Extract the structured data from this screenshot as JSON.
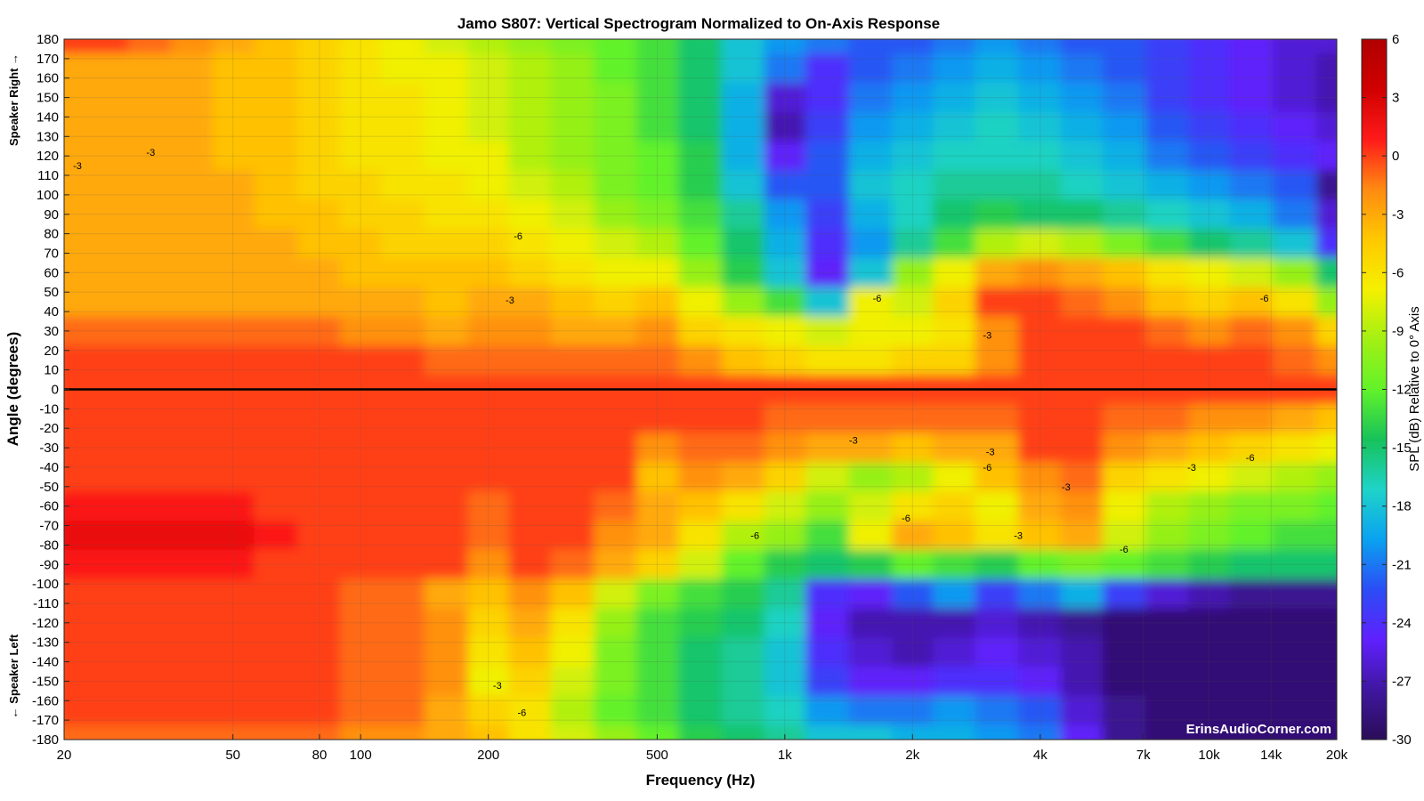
{
  "chart_data": {
    "type": "heatmap",
    "title": "Jamo S807: Vertical Spectrogram Normalized to On-Axis Response",
    "xlabel": "Frequency (Hz)",
    "ylabel": "Angle (degrees)",
    "y_upper_label": "Speaker Right →",
    "y_lower_label": "← Speaker Left",
    "x_scale": "log",
    "xlim": [
      20,
      20000
    ],
    "ylim": [
      -180,
      180
    ],
    "x_ticks": [
      {
        "value": 20,
        "label": "20"
      },
      {
        "value": 50,
        "label": "50"
      },
      {
        "value": 80,
        "label": "80"
      },
      {
        "value": 100,
        "label": "100"
      },
      {
        "value": 200,
        "label": "200"
      },
      {
        "value": 500,
        "label": "500"
      },
      {
        "value": 1000,
        "label": "1k"
      },
      {
        "value": 2000,
        "label": "2k"
      },
      {
        "value": 4000,
        "label": "4k"
      },
      {
        "value": 7000,
        "label": "7k"
      },
      {
        "value": 10000,
        "label": "10k"
      },
      {
        "value": 14000,
        "label": "14k"
      },
      {
        "value": 20000,
        "label": "20k"
      }
    ],
    "y_ticks": [
      180,
      170,
      160,
      150,
      140,
      130,
      120,
      110,
      100,
      90,
      80,
      70,
      60,
      50,
      40,
      30,
      20,
      10,
      0,
      -10,
      -20,
      -30,
      -40,
      -50,
      -60,
      -70,
      -80,
      -90,
      -100,
      -110,
      -120,
      -130,
      -140,
      -150,
      -160,
      -170,
      -180
    ],
    "colorbar": {
      "label": "SPL (dB) Relative to 0° Axis",
      "range": [
        -30,
        6
      ],
      "ticks": [
        6,
        3,
        0,
        -3,
        -6,
        -9,
        -12,
        -15,
        -18,
        -21,
        -24,
        -27,
        -30
      ],
      "colors": [
        "#2a0d58",
        "#3f17a0",
        "#6020ff",
        "#2b4df5",
        "#0aa2f0",
        "#1fd3c8",
        "#17c25a",
        "#62f22a",
        "#a3f014",
        "#f5f000",
        "#ffc800",
        "#ff8a12",
        "#ff1a1a",
        "#d00000",
        "#b00000"
      ]
    },
    "x_resolution_hz_log": [
      20,
      25,
      32,
      40,
      50,
      63,
      80,
      100,
      125,
      160,
      200,
      250,
      315,
      400,
      500,
      630,
      800,
      1000,
      1250,
      1600,
      2000,
      2500,
      3150,
      4000,
      5000,
      6300,
      8000,
      10000,
      12500,
      16000,
      20000
    ],
    "y_resolution_deg": [
      180,
      165,
      150,
      135,
      120,
      105,
      90,
      75,
      60,
      45,
      30,
      15,
      0,
      -15,
      -30,
      -45,
      -60,
      -75,
      -90,
      -105,
      -120,
      -135,
      -150,
      -165,
      -180
    ],
    "z": [
      [
        0,
        0,
        -1,
        -2,
        -3,
        -4,
        -5,
        -6,
        -7,
        -8,
        -9,
        -10,
        -11,
        -12,
        -13,
        -15,
        -18,
        -20,
        -21,
        -22,
        -22,
        -21,
        -20,
        -21,
        -22,
        -22,
        -23,
        -24,
        -25,
        -26,
        -26
      ],
      [
        -3,
        -3,
        -3,
        -3,
        -4,
        -4,
        -5,
        -6,
        -7,
        -7,
        -8,
        -9,
        -10,
        -12,
        -13,
        -15,
        -18,
        -21,
        -24,
        -22,
        -21,
        -20,
        -19,
        -20,
        -21,
        -22,
        -23,
        -24,
        -25,
        -26,
        -27
      ],
      [
        -3,
        -3,
        -3,
        -3,
        -4,
        -4,
        -5,
        -6,
        -6,
        -7,
        -8,
        -9,
        -10,
        -11,
        -13,
        -15,
        -19,
        -26,
        -24,
        -21,
        -20,
        -19,
        -18,
        -19,
        -20,
        -21,
        -23,
        -24,
        -25,
        -26,
        -27
      ],
      [
        -3,
        -3,
        -3,
        -3,
        -4,
        -4,
        -5,
        -6,
        -6,
        -7,
        -8,
        -9,
        -10,
        -11,
        -13,
        -15,
        -19,
        -27,
        -23,
        -20,
        -19,
        -18,
        -17,
        -18,
        -19,
        -20,
        -22,
        -23,
        -24,
        -25,
        -26
      ],
      [
        -3,
        -3,
        -3,
        -3,
        -4,
        -4,
        -5,
        -6,
        -6,
        -7,
        -7,
        -9,
        -10,
        -11,
        -12,
        -14,
        -19,
        -25,
        -22,
        -19,
        -18,
        -17,
        -17,
        -17,
        -18,
        -19,
        -21,
        -22,
        -23,
        -24,
        -25
      ],
      [
        -3,
        -3,
        -3,
        -3,
        -3,
        -4,
        -5,
        -5,
        -6,
        -6,
        -7,
        -8,
        -9,
        -11,
        -12,
        -14,
        -18,
        -22,
        -22,
        -18,
        -17,
        -16,
        -16,
        -16,
        -17,
        -18,
        -19,
        -20,
        -21,
        -22,
        -28
      ],
      [
        -3,
        -3,
        -3,
        -3,
        -3,
        -4,
        -4,
        -5,
        -5,
        -6,
        -6,
        -7,
        -8,
        -10,
        -11,
        -13,
        -16,
        -20,
        -23,
        -19,
        -17,
        -15,
        -14,
        -15,
        -15,
        -16,
        -17,
        -18,
        -19,
        -21,
        -26
      ],
      [
        -3,
        -3,
        -3,
        -3,
        -3,
        -3,
        -4,
        -4,
        -5,
        -5,
        -5,
        -6,
        -7,
        -8,
        -9,
        -12,
        -15,
        -19,
        -24,
        -20,
        -16,
        -13,
        -9,
        -8,
        -9,
        -11,
        -13,
        -15,
        -16,
        -18,
        -24
      ],
      [
        -3,
        -3,
        -3,
        -3,
        -3,
        -3,
        -3,
        -4,
        -4,
        -4,
        -4,
        -5,
        -6,
        -7,
        -7,
        -10,
        -14,
        -18,
        -25,
        -18,
        -10,
        -7,
        -3,
        -2,
        -3,
        -4,
        -6,
        -7,
        -8,
        -10,
        -15
      ],
      [
        -3,
        -3,
        -3,
        -3,
        -3,
        -3,
        -3,
        -3,
        -3,
        -4,
        -3,
        -3,
        -4,
        -5,
        -4,
        -7,
        -10,
        -13,
        -18,
        -7,
        -8,
        -5,
        0,
        0,
        -1,
        -2,
        -4,
        -5,
        -4,
        -6,
        -10
      ],
      [
        -1,
        -1,
        -1,
        -1,
        -1,
        -1,
        -1,
        -2,
        -2,
        -3,
        -2,
        -2,
        -3,
        -3,
        -2,
        -5,
        -6,
        -7,
        -8,
        -7,
        -7,
        -6,
        -2,
        0,
        0,
        0,
        -1,
        -2,
        -1,
        -2,
        -5
      ],
      [
        0,
        0,
        0,
        0,
        0,
        0,
        0,
        0,
        0,
        -1,
        -1,
        -1,
        -1,
        -1,
        -1,
        -2,
        -4,
        -5,
        -6,
        -6,
        -5,
        -5,
        -2,
        0,
        0,
        0,
        0,
        0,
        0,
        -1,
        -2
      ],
      [
        0,
        0,
        0,
        0,
        0,
        0,
        0,
        0,
        0,
        0,
        0,
        0,
        0,
        0,
        0,
        0,
        0,
        0,
        0,
        0,
        0,
        0,
        0,
        0,
        0,
        0,
        0,
        0,
        0,
        0,
        0
      ],
      [
        0,
        0,
        0,
        0,
        0,
        0,
        0,
        0,
        0,
        0,
        0,
        0,
        0,
        0,
        0,
        0,
        0,
        -1,
        -1,
        -1,
        -1,
        -1,
        -1,
        0,
        0,
        -1,
        -1,
        -2,
        -2,
        -3,
        -4
      ],
      [
        0,
        0,
        0,
        0,
        0,
        0,
        0,
        0,
        0,
        0,
        0,
        0,
        0,
        0,
        -2,
        -1,
        -1,
        -2,
        -3,
        -3,
        -4,
        -3,
        -3,
        0,
        0,
        -2,
        -3,
        -4,
        -5,
        -6,
        -7
      ],
      [
        0,
        0,
        0,
        0,
        0,
        0,
        0,
        0,
        0,
        0,
        0,
        0,
        0,
        0,
        -4,
        -2,
        -3,
        -5,
        -8,
        -10,
        -9,
        -7,
        -4,
        -2,
        -1,
        -5,
        -6,
        -7,
        -8,
        -9,
        -10
      ],
      [
        1,
        1,
        1,
        1,
        1,
        0,
        0,
        0,
        0,
        0,
        -1,
        0,
        0,
        -1,
        -3,
        -4,
        -6,
        -8,
        -10,
        -8,
        -6,
        -5,
        -7,
        -3,
        -2,
        -7,
        -9,
        -10,
        -11,
        -11,
        -12
      ],
      [
        2,
        2,
        2,
        2,
        2,
        1,
        0,
        0,
        0,
        0,
        -1,
        0,
        0,
        -2,
        -3,
        -6,
        -9,
        -10,
        -13,
        -7,
        -3,
        -4,
        -6,
        -4,
        -3,
        -8,
        -10,
        -11,
        -12,
        -13,
        -13
      ],
      [
        1,
        1,
        1,
        1,
        1,
        0,
        0,
        0,
        0,
        0,
        -2,
        0,
        -1,
        -3,
        -5,
        -8,
        -12,
        -14,
        -15,
        -14,
        -12,
        -13,
        -14,
        -12,
        -11,
        -12,
        -13,
        -14,
        -15,
        -15,
        -15
      ],
      [
        0,
        0,
        0,
        0,
        0,
        0,
        0,
        -1,
        -1,
        -3,
        -4,
        -2,
        -4,
        -8,
        -11,
        -13,
        -14,
        -16,
        -24,
        -25,
        -22,
        -20,
        -23,
        -21,
        -19,
        -23,
        -26,
        -27,
        -28,
        -28,
        -28
      ],
      [
        0,
        0,
        0,
        0,
        0,
        0,
        0,
        -1,
        -1,
        -2,
        -5,
        -3,
        -6,
        -10,
        -13,
        -14,
        -15,
        -17,
        -25,
        -27,
        -27,
        -27,
        -26,
        -27,
        -28,
        -29,
        -29,
        -29,
        -29,
        -29,
        -29
      ],
      [
        0,
        0,
        0,
        0,
        0,
        0,
        0,
        -1,
        -1,
        -2,
        -6,
        -4,
        -7,
        -11,
        -13,
        -15,
        -16,
        -18,
        -24,
        -26,
        -27,
        -26,
        -25,
        -26,
        -27,
        -29,
        -29,
        -29,
        -29,
        -29,
        -29
      ],
      [
        0,
        0,
        0,
        0,
        0,
        0,
        0,
        -1,
        -1,
        -2,
        -7,
        -5,
        -8,
        -11,
        -13,
        -15,
        -16,
        -18,
        -23,
        -25,
        -25,
        -24,
        -24,
        -25,
        -27,
        -29,
        -29,
        -29,
        -29,
        -29,
        -29
      ],
      [
        0,
        0,
        0,
        0,
        0,
        0,
        0,
        -1,
        -1,
        -3,
        -5,
        -6,
        -9,
        -12,
        -13,
        -15,
        -16,
        -17,
        -20,
        -21,
        -21,
        -20,
        -21,
        -22,
        -26,
        -28,
        -29,
        -29,
        -29,
        -29,
        -29
      ],
      [
        -1,
        -1,
        -1,
        -1,
        -1,
        -1,
        -1,
        -2,
        -2,
        -3,
        -4,
        -6,
        -8,
        -10,
        -12,
        -14,
        -15,
        -16,
        -18,
        -18,
        -19,
        -19,
        -20,
        -21,
        -25,
        -28,
        -29,
        -29,
        -29,
        -29,
        -29
      ]
    ],
    "contour_labels": [
      {
        "text": "-3",
        "f": 21.5,
        "a": 115
      },
      {
        "text": "-3",
        "f": 32,
        "a": 122
      },
      {
        "text": "-6",
        "f": 235,
        "a": 79
      },
      {
        "text": "-3",
        "f": 225,
        "a": 46
      },
      {
        "text": "-6",
        "f": 1650,
        "a": 47
      },
      {
        "text": "-3",
        "f": 3000,
        "a": 28
      },
      {
        "text": "-6",
        "f": 13500,
        "a": 47
      },
      {
        "text": "-3",
        "f": 1450,
        "a": -26
      },
      {
        "text": "-3",
        "f": 3050,
        "a": -32
      },
      {
        "text": "-6",
        "f": 3000,
        "a": -40
      },
      {
        "text": "-3",
        "f": 4600,
        "a": -50
      },
      {
        "text": "-6",
        "f": 1930,
        "a": -66
      },
      {
        "text": "-6",
        "f": 850,
        "a": -75
      },
      {
        "text": "-3",
        "f": 3550,
        "a": -75
      },
      {
        "text": "-6",
        "f": 6300,
        "a": -82
      },
      {
        "text": "-3",
        "f": 9100,
        "a": -40
      },
      {
        "text": "-6",
        "f": 12500,
        "a": -35
      },
      {
        "text": "-3",
        "f": 210,
        "a": -152
      },
      {
        "text": "-6",
        "f": 240,
        "a": -166
      }
    ],
    "reference_line": {
      "angle": 0
    },
    "watermark": "ErinsAudioCorner.com"
  }
}
